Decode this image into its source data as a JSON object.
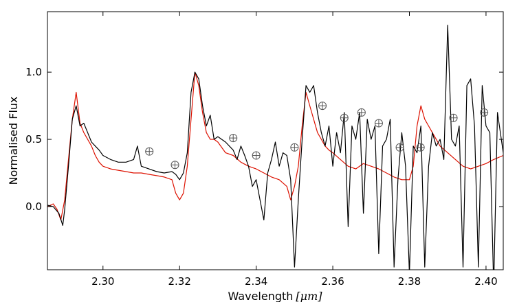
{
  "chart_data": {
    "type": "line",
    "title": "",
    "xlabel": "Wavelength",
    "xlabel_unit": "[μm]",
    "ylabel": "Normalised Flux",
    "xlim": [
      2.2855,
      2.4045
    ],
    "ylim": [
      -0.47,
      1.45
    ],
    "grid": false,
    "legend": "none",
    "x_ticks": [
      2.3,
      2.32,
      2.34,
      2.36,
      2.38,
      2.4
    ],
    "x_tick_labels": [
      "2.30",
      "2.32",
      "2.34",
      "2.36",
      "2.38",
      "2.40"
    ],
    "y_ticks": [
      0.0,
      0.5,
      1.0
    ],
    "y_tick_labels": [
      "0.0",
      "0.5",
      "1.0"
    ],
    "series": [
      {
        "color": "#000000",
        "x": [
          2.2855,
          2.287,
          2.2885,
          2.2895,
          2.29,
          2.291,
          2.292,
          2.293,
          2.294,
          2.295,
          2.296,
          2.297,
          2.298,
          2.299,
          2.3,
          2.302,
          2.304,
          2.306,
          2.308,
          2.309,
          2.31,
          2.312,
          2.314,
          2.316,
          2.318,
          2.319,
          2.32,
          2.321,
          2.322,
          2.323,
          2.324,
          2.325,
          2.326,
          2.327,
          2.328,
          2.329,
          2.33,
          2.332,
          2.334,
          2.335,
          2.336,
          2.337,
          2.338,
          2.339,
          2.34,
          2.341,
          2.342,
          2.343,
          2.344,
          2.345,
          2.346,
          2.347,
          2.348,
          2.349,
          2.35,
          2.351,
          2.352,
          2.353,
          2.354,
          2.355,
          2.356,
          2.357,
          2.358,
          2.359,
          2.36,
          2.361,
          2.362,
          2.363,
          2.364,
          2.365,
          2.366,
          2.367,
          2.368,
          2.369,
          2.37,
          2.371,
          2.372,
          2.373,
          2.374,
          2.375,
          2.376,
          2.377,
          2.378,
          2.379,
          2.38,
          2.381,
          2.382,
          2.383,
          2.384,
          2.385,
          2.386,
          2.387,
          2.388,
          2.389,
          2.39,
          2.391,
          2.392,
          2.393,
          2.394,
          2.395,
          2.396,
          2.397,
          2.398,
          2.399,
          2.4,
          2.401,
          2.402,
          2.403,
          2.4045
        ],
        "y": [
          0.01,
          0.0,
          -0.05,
          -0.14,
          -0.02,
          0.3,
          0.65,
          0.75,
          0.6,
          0.62,
          0.55,
          0.48,
          0.45,
          0.42,
          0.38,
          0.35,
          0.33,
          0.33,
          0.35,
          0.45,
          0.3,
          0.28,
          0.26,
          0.25,
          0.26,
          0.24,
          0.2,
          0.25,
          0.4,
          0.85,
          1.0,
          0.95,
          0.75,
          0.6,
          0.68,
          0.5,
          0.52,
          0.48,
          0.42,
          0.35,
          0.45,
          0.38,
          0.3,
          0.15,
          0.2,
          0.05,
          -0.1,
          0.25,
          0.35,
          0.48,
          0.3,
          0.4,
          0.38,
          0.2,
          -0.45,
          0.05,
          0.5,
          0.9,
          0.85,
          0.9,
          0.7,
          0.55,
          0.45,
          0.6,
          0.3,
          0.55,
          0.4,
          0.7,
          -0.15,
          0.6,
          0.5,
          0.7,
          -0.05,
          0.65,
          0.5,
          0.6,
          -0.35,
          0.45,
          0.5,
          0.65,
          -0.45,
          0.2,
          0.55,
          0.3,
          -0.5,
          0.45,
          0.4,
          0.6,
          -0.45,
          0.3,
          0.55,
          0.45,
          0.5,
          0.35,
          1.35,
          0.5,
          0.45,
          0.6,
          -0.45,
          0.9,
          0.95,
          0.6,
          -0.45,
          0.9,
          0.6,
          0.55,
          -0.6,
          0.7,
          0.4
        ],
        "y_break_at_x": 2.401
      },
      {
        "color": "#dd1100",
        "x": [
          2.2855,
          2.287,
          2.288,
          2.289,
          2.29,
          2.291,
          2.292,
          2.293,
          2.294,
          2.295,
          2.296,
          2.297,
          2.298,
          2.299,
          2.3,
          2.302,
          2.304,
          2.306,
          2.308,
          2.31,
          2.312,
          2.314,
          2.316,
          2.318,
          2.319,
          2.32,
          2.321,
          2.322,
          2.323,
          2.324,
          2.325,
          2.326,
          2.327,
          2.328,
          2.329,
          2.33,
          2.332,
          2.334,
          2.336,
          2.338,
          2.34,
          2.342,
          2.344,
          2.346,
          2.348,
          2.349,
          2.35,
          2.351,
          2.352,
          2.353,
          2.354,
          2.355,
          2.356,
          2.357,
          2.358,
          2.359,
          2.36,
          2.362,
          2.364,
          2.366,
          2.368,
          2.37,
          2.372,
          2.374,
          2.376,
          2.378,
          2.38,
          2.381,
          2.382,
          2.383,
          2.384,
          2.385,
          2.386,
          2.388,
          2.39,
          2.392,
          2.394,
          2.396,
          2.398,
          2.4,
          2.402,
          2.4045
        ],
        "y": [
          0.0,
          0.02,
          -0.02,
          -0.1,
          0.05,
          0.35,
          0.65,
          0.85,
          0.62,
          0.55,
          0.5,
          0.45,
          0.38,
          0.33,
          0.3,
          0.28,
          0.27,
          0.26,
          0.25,
          0.25,
          0.24,
          0.23,
          0.22,
          0.2,
          0.1,
          0.05,
          0.1,
          0.3,
          0.65,
          1.0,
          0.9,
          0.7,
          0.55,
          0.5,
          0.5,
          0.48,
          0.4,
          0.38,
          0.33,
          0.3,
          0.28,
          0.25,
          0.22,
          0.2,
          0.15,
          0.05,
          0.15,
          0.3,
          0.6,
          0.85,
          0.75,
          0.65,
          0.55,
          0.5,
          0.45,
          0.42,
          0.4,
          0.35,
          0.3,
          0.28,
          0.32,
          0.3,
          0.28,
          0.25,
          0.22,
          0.2,
          0.2,
          0.3,
          0.6,
          0.75,
          0.65,
          0.6,
          0.55,
          0.45,
          0.4,
          0.35,
          0.3,
          0.28,
          0.3,
          0.32,
          0.35,
          0.38
        ]
      }
    ],
    "telluric_markers": [
      {
        "x": 2.3121,
        "y": 0.41
      },
      {
        "x": 2.3188,
        "y": 0.31
      },
      {
        "x": 2.334,
        "y": 0.51
      },
      {
        "x": 2.34,
        "y": 0.38
      },
      {
        "x": 2.35,
        "y": 0.44
      },
      {
        "x": 2.3573,
        "y": 0.75
      },
      {
        "x": 2.363,
        "y": 0.66
      },
      {
        "x": 2.3675,
        "y": 0.7
      },
      {
        "x": 2.372,
        "y": 0.62
      },
      {
        "x": 2.3775,
        "y": 0.44
      },
      {
        "x": 2.3829,
        "y": 0.44
      },
      {
        "x": 2.3915,
        "y": 0.66
      },
      {
        "x": 2.3995,
        "y": 0.7
      }
    ]
  }
}
